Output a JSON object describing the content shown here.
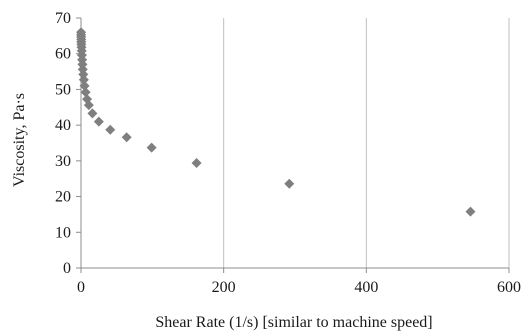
{
  "chart_data": {
    "type": "scatter",
    "xlabel": "Shear Rate (1/s) [similar to machine speed]",
    "ylabel": "Viscosity, Pa·s",
    "xlim": [
      0,
      600
    ],
    "ylim": [
      0,
      70
    ],
    "x_ticks": [
      0,
      200,
      400,
      600
    ],
    "y_ticks": [
      0,
      10,
      20,
      30,
      40,
      50,
      60,
      70
    ],
    "grid": {
      "vertical": true,
      "horizontal": false
    },
    "marker": {
      "shape": "diamond",
      "color": "#7f7f7f"
    },
    "series": [
      {
        "points": [
          [
            0.1,
            66.0
          ],
          [
            0.15,
            65.3
          ],
          [
            0.2,
            64.7
          ],
          [
            0.3,
            64.0
          ],
          [
            0.4,
            63.3
          ],
          [
            0.5,
            62.6
          ],
          [
            0.7,
            61.8
          ],
          [
            1.0,
            60.8
          ],
          [
            1.3,
            59.6
          ],
          [
            1.6,
            58.3
          ],
          [
            2.0,
            57.0
          ],
          [
            2.5,
            55.6
          ],
          [
            3.2,
            54.2
          ],
          [
            4.0,
            52.7
          ],
          [
            5.0,
            51.0
          ],
          [
            6.5,
            49.2
          ],
          [
            8.5,
            47.3
          ],
          [
            11,
            45.6
          ],
          [
            16,
            43.3
          ],
          [
            25,
            41.0
          ],
          [
            41,
            38.7
          ],
          [
            64,
            36.6
          ],
          [
            99,
            33.7
          ],
          [
            162,
            29.4
          ],
          [
            292,
            23.6
          ],
          [
            546,
            15.8
          ]
        ]
      }
    ]
  }
}
